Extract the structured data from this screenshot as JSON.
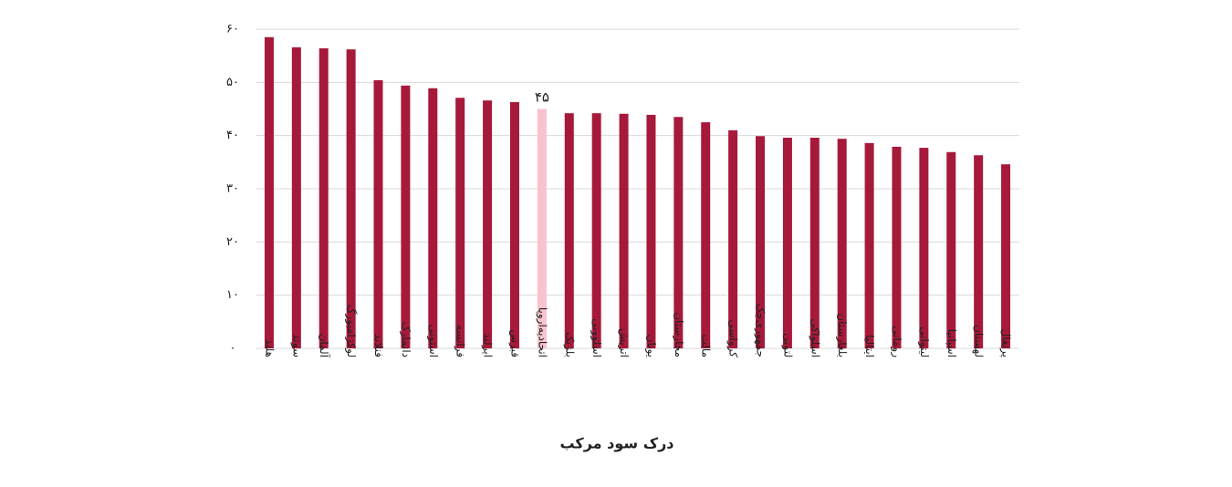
{
  "chart_data": {
    "type": "bar",
    "x_label": "درک سود مرکب",
    "categories": [
      "هلند",
      "سوئد",
      "آلمان",
      "لوکزامبورگ",
      "فنلاند",
      "دانمارک",
      "استونی",
      "فرانسه",
      "ایرلند",
      "قبرس",
      "اتحادیه‌اروپا",
      "بلژیک",
      "اسلوونی",
      "اتریش",
      "یونان",
      "مجارستان",
      "مالت",
      "کرواسی",
      "جمهوری‌چک",
      "لتونی",
      "اسلواکی",
      "بلغارستان",
      "ایتالیا",
      "رومانی",
      "لیتوانی",
      "اسپانیا",
      "لهستان",
      "پرتغال"
    ],
    "values": [
      58.5,
      56.6,
      56.4,
      56.2,
      50.4,
      49.4,
      48.9,
      47.1,
      46.6,
      46.3,
      45,
      44.2,
      44.2,
      44.1,
      43.9,
      43.5,
      42.5,
      41.0,
      39.9,
      39.6,
      39.6,
      39.4,
      38.6,
      37.9,
      37.7,
      36.9,
      36.3,
      34.6
    ],
    "value_labels": [
      null,
      null,
      null,
      null,
      null,
      null,
      null,
      null,
      null,
      null,
      "۴۵",
      null,
      null,
      null,
      null,
      null,
      null,
      null,
      null,
      null,
      null,
      null,
      null,
      null,
      null,
      null,
      null,
      null
    ],
    "colors": [
      "#a6193a",
      "#a6193a",
      "#a6193a",
      "#a6193a",
      "#a6193a",
      "#a6193a",
      "#a6193a",
      "#a6193a",
      "#a6193a",
      "#a6193a",
      "#f7c3cf",
      "#a6193a",
      "#a6193a",
      "#a6193a",
      "#a6193a",
      "#a6193a",
      "#a6193a",
      "#a6193a",
      "#a6193a",
      "#a6193a",
      "#a6193a",
      "#a6193a",
      "#a6193a",
      "#a6193a",
      "#a6193a",
      "#a6193a",
      "#a6193a",
      "#a6193a"
    ],
    "ylim": [
      0,
      60
    ],
    "yticks": [
      {
        "value": 0,
        "label": "۰"
      },
      {
        "value": 10,
        "label": "۱۰"
      },
      {
        "value": 20,
        "label": "۲۰"
      },
      {
        "value": 30,
        "label": "۳۰"
      },
      {
        "value": 40,
        "label": "۴۰"
      },
      {
        "value": 50,
        "label": "۵۰"
      },
      {
        "value": 60,
        "label": "۶۰"
      }
    ],
    "grid": true
  }
}
